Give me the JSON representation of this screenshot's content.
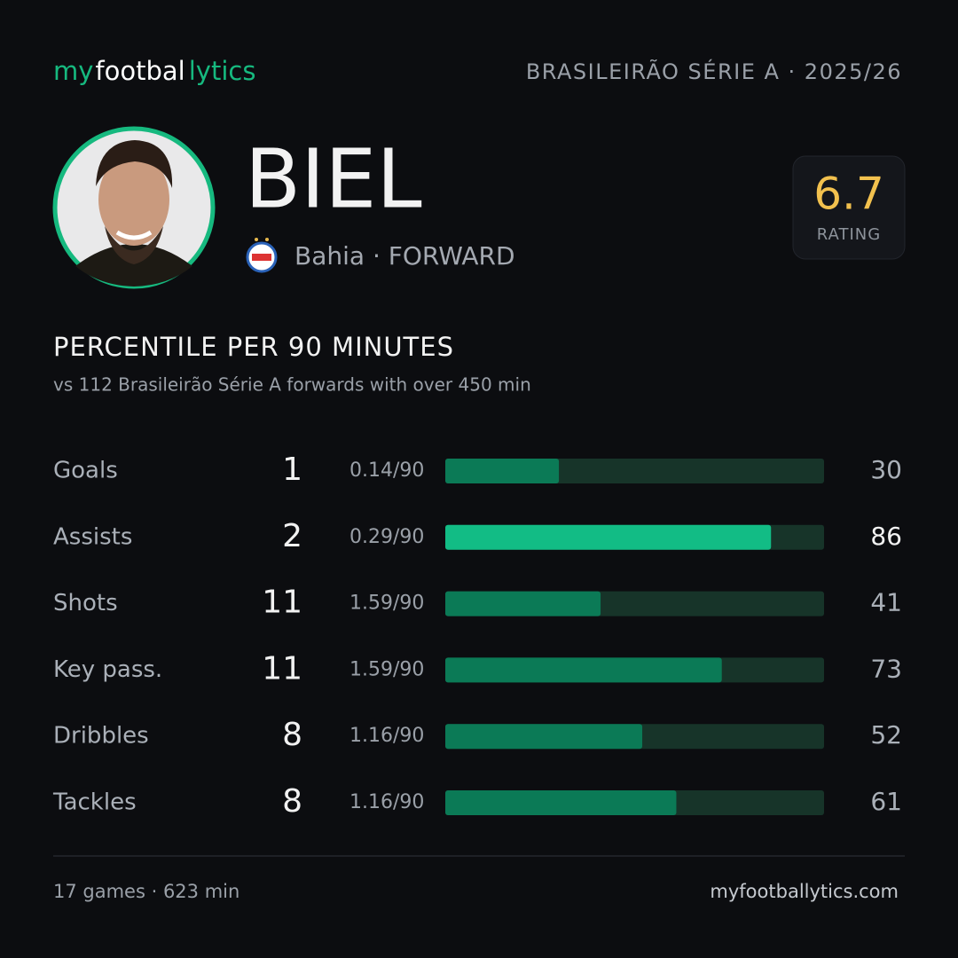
{
  "header": {
    "logo": [
      "my",
      "footbal",
      "lytics"
    ],
    "competition": "BRASILEIRÃO SÉRIE A · 2025/26"
  },
  "player": {
    "name": "BIEL",
    "team_position": "Bahia · FORWARD",
    "rating": "6.7",
    "rating_label": "RATING"
  },
  "section": {
    "title": "PERCENTILE PER 90 MINUTES",
    "subtitle": "vs 112 Brasileirão Série A forwards with over 450 min"
  },
  "stats": [
    {
      "label": "Goals",
      "total": 1,
      "per90": "0.14/90",
      "percentile": 30,
      "color": "#0b7a56"
    },
    {
      "label": "Assists",
      "total": 2,
      "per90": "0.29/90",
      "percentile": 86,
      "color": "#12bc85"
    },
    {
      "label": "Shots",
      "total": 11,
      "per90": "1.59/90",
      "percentile": 41,
      "color": "#0b7a56"
    },
    {
      "label": "Key pass.",
      "total": 11,
      "per90": "1.59/90",
      "percentile": 73,
      "color": "#0b7a56"
    },
    {
      "label": "Dribbles",
      "total": 8,
      "per90": "1.16/90",
      "percentile": 52,
      "color": "#0b7a56"
    },
    {
      "label": "Tackles",
      "total": 8,
      "per90": "1.16/90",
      "percentile": 61,
      "color": "#0b7a56"
    }
  ],
  "percentile_max": 100,
  "footer": {
    "summary": "17 games · 623 min",
    "site": "myfootballytics.com"
  }
}
